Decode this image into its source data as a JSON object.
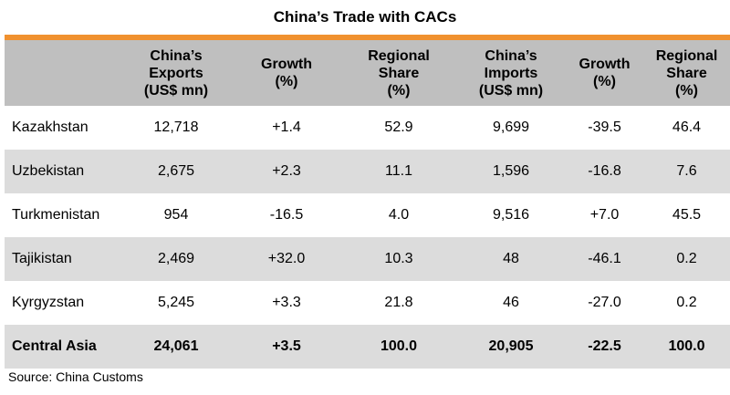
{
  "title": "China’s Trade with CACs",
  "colors": {
    "accent_bar": "#F0912F",
    "header_bg": "#BFBFBF",
    "shaded_row_bg": "#DCDCDC"
  },
  "table": {
    "headers": [
      {
        "line1": "China’s",
        "line2": "Exports",
        "line3": "(US$ mn)"
      },
      {
        "line1": "Growth",
        "line2": "(%)"
      },
      {
        "line1": "Regional",
        "line2": "Share",
        "line3": "(%)"
      },
      {
        "line1": "China’s",
        "line2": "Imports",
        "line3": "(US$ mn)"
      },
      {
        "line1": "Growth",
        "line2": "(%)"
      },
      {
        "line1": "Regional",
        "line2": "Share",
        "line3": "(%)"
      }
    ],
    "rows": [
      {
        "country": "Kazakhstan",
        "exports": "12,718",
        "exports_growth": "+1.4",
        "exports_share": "52.9",
        "imports": "9,699",
        "imports_growth": "-39.5",
        "imports_share": "46.4"
      },
      {
        "country": "Uzbekistan",
        "exports": "2,675",
        "exports_growth": "+2.3",
        "exports_share": "11.1",
        "imports": "1,596",
        "imports_growth": "-16.8",
        "imports_share": "7.6"
      },
      {
        "country": "Turkmenistan",
        "exports": "954",
        "exports_growth": "-16.5",
        "exports_share": "4.0",
        "imports": "9,516",
        "imports_growth": "+7.0",
        "imports_share": "45.5"
      },
      {
        "country": "Tajikistan",
        "exports": "2,469",
        "exports_growth": "+32.0",
        "exports_share": "10.3",
        "imports": "48",
        "imports_growth": "-46.1",
        "imports_share": "0.2"
      },
      {
        "country": "Kyrgyzstan",
        "exports": "5,245",
        "exports_growth": "+3.3",
        "exports_share": "21.8",
        "imports": "46",
        "imports_growth": "-27.0",
        "imports_share": "0.2"
      }
    ],
    "total": {
      "country": "Central Asia",
      "exports": "24,061",
      "exports_growth": "+3.5",
      "exports_share": "100.0",
      "imports": "20,905",
      "imports_growth": "-22.5",
      "imports_share": "100.0"
    }
  },
  "source": "Source: China Customs"
}
